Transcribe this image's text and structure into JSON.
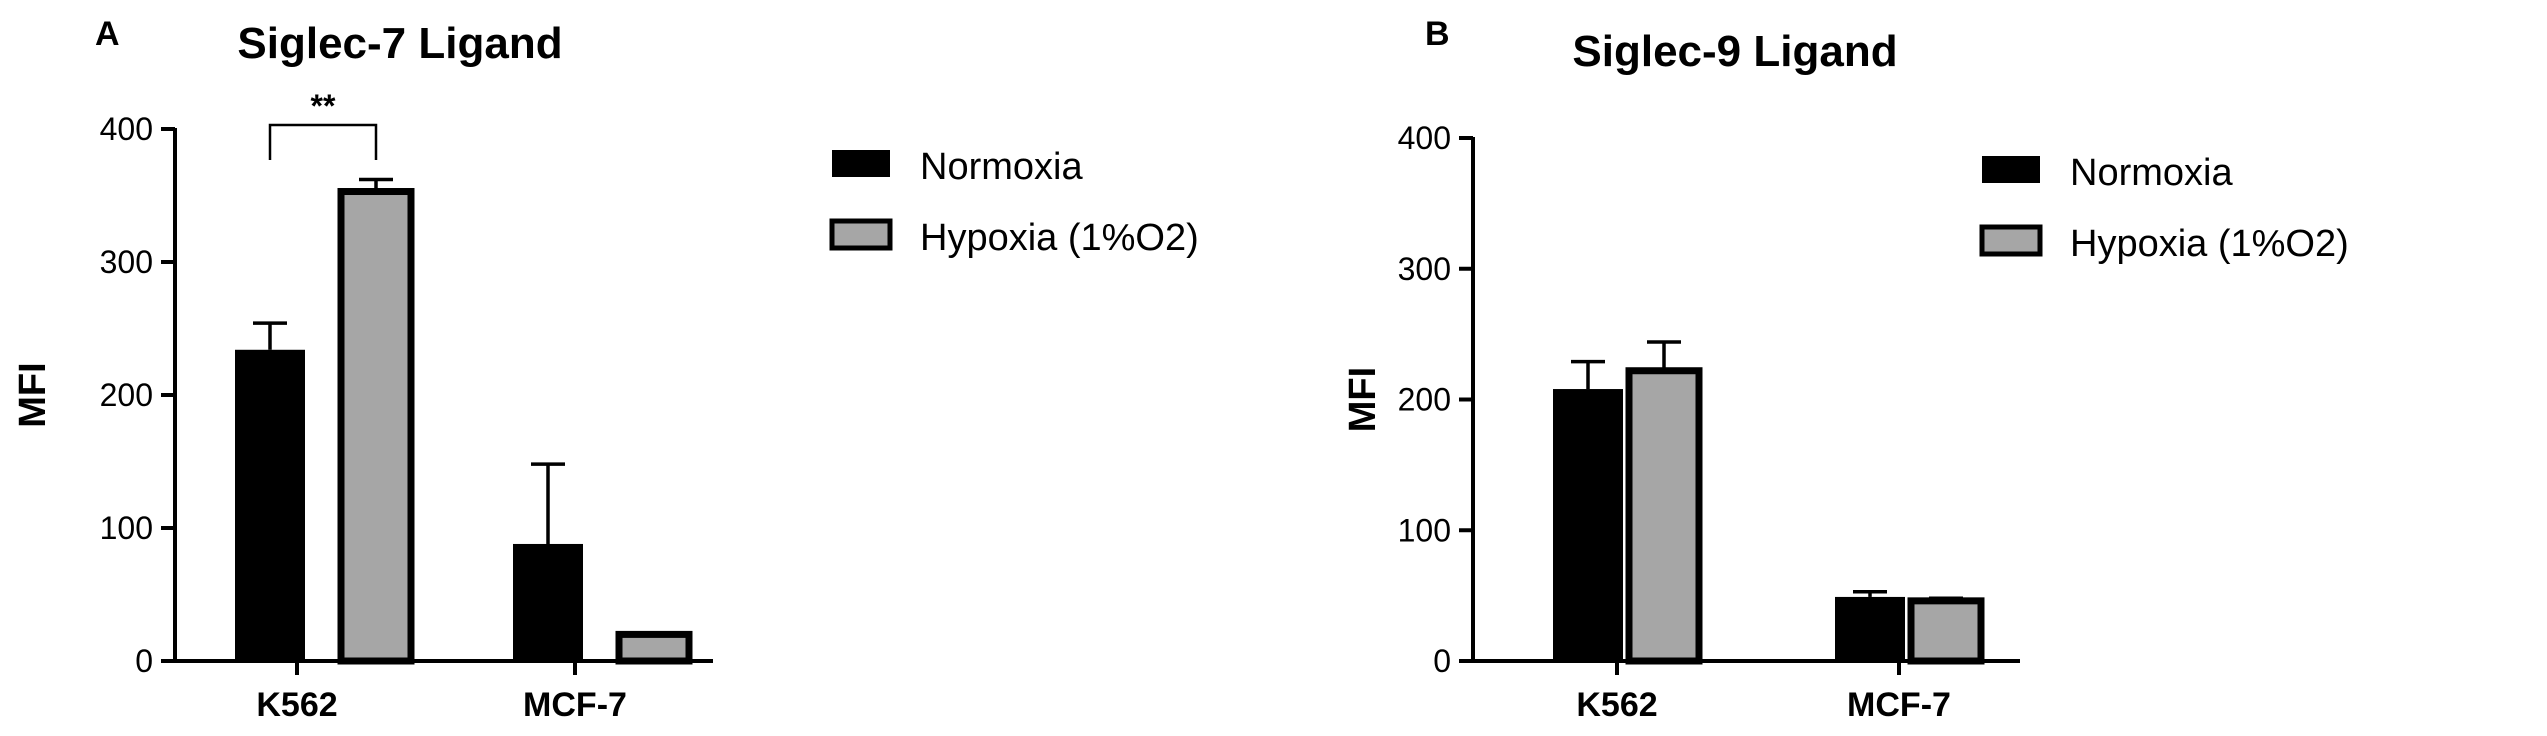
{
  "chart_data": [
    {
      "type": "bar",
      "panel": "A",
      "title": "Siglec-7 Ligand",
      "xlabel": "",
      "ylabel": "MFI",
      "ylim": [
        0,
        400
      ],
      "yticks": [
        "0",
        "100",
        "200",
        "300",
        "400"
      ],
      "categories": [
        "K562",
        "MCF-7"
      ],
      "series": [
        {
          "name": "Normoxia",
          "color": "#000000",
          "values": [
            234,
            88
          ],
          "errors": [
            20,
            60
          ]
        },
        {
          "name": "Hypoxia (1%O2)",
          "color": "#a6a6a6",
          "values": [
            353,
            20
          ],
          "errors": [
            9,
            1
          ]
        }
      ],
      "annotations": [
        {
          "text": "**",
          "category": "K562"
        }
      ],
      "legend": "right",
      "grid": false
    },
    {
      "type": "bar",
      "panel": "B",
      "title": "Siglec-9 Ligand",
      "xlabel": "",
      "ylabel": "MFI",
      "ylim": [
        0,
        400
      ],
      "yticks": [
        "0",
        "100",
        "200",
        "300",
        "400"
      ],
      "categories": [
        "K562",
        "MCF-7"
      ],
      "series": [
        {
          "name": "Normoxia",
          "color": "#000000",
          "values": [
            208,
            49
          ],
          "errors": [
            21,
            4
          ]
        },
        {
          "name": "Hypoxia (1%O2)",
          "color": "#a6a6a6",
          "values": [
            222,
            46
          ],
          "errors": [
            22,
            2
          ]
        }
      ],
      "annotations": [],
      "legend": "right",
      "grid": false
    }
  ]
}
